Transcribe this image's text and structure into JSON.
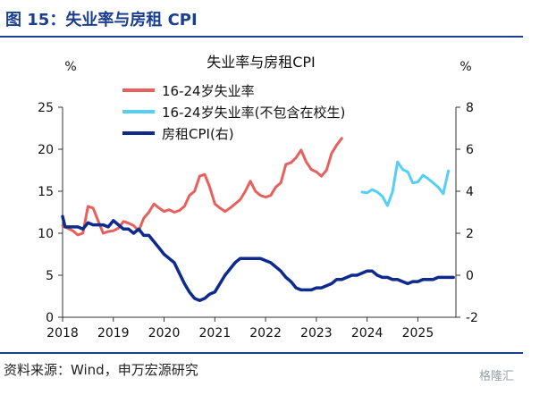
{
  "figure": {
    "title": "图 15：失业率与房租 CPI",
    "source": "资料来源：Wind，申万宏源研究",
    "watermark": "格隆汇"
  },
  "chart_data": {
    "type": "line",
    "title": "失业率与房租CPI",
    "y_unit_left": "%",
    "y_unit_right": "%",
    "xlim": [
      2018.0,
      2025.75
    ],
    "ylim_left": [
      0,
      25
    ],
    "ylim_right": [
      -2,
      8
    ],
    "x_ticks": [
      "2018",
      "2019",
      "2020",
      "2021",
      "2022",
      "2023",
      "2024",
      "2025"
    ],
    "y_ticks_left": [
      "0",
      "5",
      "10",
      "15",
      "20",
      "25"
    ],
    "y_ticks_right": [
      "-2",
      "0",
      "2",
      "4",
      "6",
      "8"
    ],
    "legend_position": "top-center",
    "series": [
      {
        "name": "16-24岁失业率",
        "axis": "left",
        "color": "#e8605d",
        "points": [
          [
            2018.0,
            10.9
          ],
          [
            2018.1,
            10.6
          ],
          [
            2018.2,
            10.3
          ],
          [
            2018.3,
            9.8
          ],
          [
            2018.4,
            10.0
          ],
          [
            2018.5,
            13.2
          ],
          [
            2018.6,
            13.0
          ],
          [
            2018.7,
            11.5
          ],
          [
            2018.8,
            10.0
          ],
          [
            2018.9,
            10.2
          ],
          [
            2019.0,
            10.3
          ],
          [
            2019.1,
            10.6
          ],
          [
            2019.2,
            11.4
          ],
          [
            2019.3,
            11.2
          ],
          [
            2019.4,
            10.9
          ],
          [
            2019.5,
            10.3
          ],
          [
            2019.6,
            11.8
          ],
          [
            2019.7,
            12.5
          ],
          [
            2019.8,
            13.5
          ],
          [
            2019.9,
            13.0
          ],
          [
            2020.0,
            12.6
          ],
          [
            2020.1,
            12.8
          ],
          [
            2020.2,
            12.5
          ],
          [
            2020.3,
            12.7
          ],
          [
            2020.4,
            13.2
          ],
          [
            2020.5,
            14.5
          ],
          [
            2020.6,
            15.0
          ],
          [
            2020.7,
            16.8
          ],
          [
            2020.8,
            17.0
          ],
          [
            2020.9,
            15.5
          ],
          [
            2021.0,
            13.5
          ],
          [
            2021.1,
            13.0
          ],
          [
            2021.2,
            12.6
          ],
          [
            2021.3,
            13.0
          ],
          [
            2021.4,
            13.5
          ],
          [
            2021.5,
            14.0
          ],
          [
            2021.6,
            15.0
          ],
          [
            2021.7,
            16.2
          ],
          [
            2021.8,
            15.0
          ],
          [
            2021.9,
            14.5
          ],
          [
            2022.0,
            14.3
          ],
          [
            2022.1,
            14.5
          ],
          [
            2022.2,
            15.5
          ],
          [
            2022.3,
            16.0
          ],
          [
            2022.4,
            18.2
          ],
          [
            2022.5,
            18.4
          ],
          [
            2022.6,
            19.0
          ],
          [
            2022.7,
            19.9
          ],
          [
            2022.8,
            18.5
          ],
          [
            2022.9,
            17.6
          ],
          [
            2023.0,
            17.3
          ],
          [
            2023.1,
            16.8
          ],
          [
            2023.2,
            17.5
          ],
          [
            2023.3,
            19.5
          ],
          [
            2023.4,
            20.5
          ],
          [
            2023.5,
            21.3
          ]
        ]
      },
      {
        "name": "16-24岁失业率(不包含在校生)",
        "axis": "left",
        "color": "#55cff5",
        "points": [
          [
            2023.9,
            14.9
          ],
          [
            2024.0,
            14.8
          ],
          [
            2024.1,
            15.2
          ],
          [
            2024.2,
            14.9
          ],
          [
            2024.3,
            14.4
          ],
          [
            2024.4,
            13.3
          ],
          [
            2024.5,
            14.9
          ],
          [
            2024.6,
            18.5
          ],
          [
            2024.7,
            17.6
          ],
          [
            2024.8,
            17.3
          ],
          [
            2024.9,
            16.0
          ],
          [
            2025.0,
            16.1
          ],
          [
            2025.1,
            16.9
          ],
          [
            2025.2,
            16.5
          ],
          [
            2025.3,
            16.0
          ],
          [
            2025.4,
            15.5
          ],
          [
            2025.5,
            14.7
          ],
          [
            2025.6,
            17.4
          ]
        ]
      },
      {
        "name": "房租CPI(右)",
        "axis": "right",
        "color": "#0d2a8c",
        "points": [
          [
            2018.0,
            2.8
          ],
          [
            2018.05,
            2.3
          ],
          [
            2018.1,
            2.3
          ],
          [
            2018.2,
            2.3
          ],
          [
            2018.3,
            2.3
          ],
          [
            2018.4,
            2.2
          ],
          [
            2018.5,
            2.5
          ],
          [
            2018.6,
            2.4
          ],
          [
            2018.7,
            2.4
          ],
          [
            2018.8,
            2.4
          ],
          [
            2018.9,
            2.3
          ],
          [
            2019.0,
            2.6
          ],
          [
            2019.1,
            2.4
          ],
          [
            2019.2,
            2.2
          ],
          [
            2019.3,
            2.2
          ],
          [
            2019.4,
            2.0
          ],
          [
            2019.5,
            2.2
          ],
          [
            2019.6,
            1.9
          ],
          [
            2019.7,
            1.9
          ],
          [
            2019.8,
            1.6
          ],
          [
            2019.9,
            1.3
          ],
          [
            2020.0,
            1.0
          ],
          [
            2020.1,
            0.8
          ],
          [
            2020.2,
            0.6
          ],
          [
            2020.3,
            0.1
          ],
          [
            2020.4,
            -0.4
          ],
          [
            2020.5,
            -0.8
          ],
          [
            2020.6,
            -1.1
          ],
          [
            2020.7,
            -1.2
          ],
          [
            2020.8,
            -1.1
          ],
          [
            2020.9,
            -0.9
          ],
          [
            2021.0,
            -0.8
          ],
          [
            2021.1,
            -0.4
          ],
          [
            2021.2,
            0.0
          ],
          [
            2021.3,
            0.3
          ],
          [
            2021.4,
            0.6
          ],
          [
            2021.5,
            0.8
          ],
          [
            2021.6,
            0.8
          ],
          [
            2021.7,
            0.8
          ],
          [
            2021.8,
            0.8
          ],
          [
            2021.9,
            0.8
          ],
          [
            2022.0,
            0.7
          ],
          [
            2022.1,
            0.6
          ],
          [
            2022.2,
            0.4
          ],
          [
            2022.3,
            0.2
          ],
          [
            2022.4,
            -0.1
          ],
          [
            2022.5,
            -0.3
          ],
          [
            2022.6,
            -0.6
          ],
          [
            2022.7,
            -0.7
          ],
          [
            2022.8,
            -0.7
          ],
          [
            2022.9,
            -0.7
          ],
          [
            2023.0,
            -0.6
          ],
          [
            2023.1,
            -0.6
          ],
          [
            2023.2,
            -0.5
          ],
          [
            2023.3,
            -0.4
          ],
          [
            2023.4,
            -0.2
          ],
          [
            2023.5,
            -0.2
          ],
          [
            2023.6,
            -0.1
          ],
          [
            2023.7,
            0.0
          ],
          [
            2023.8,
            0.0
          ],
          [
            2023.9,
            0.1
          ],
          [
            2024.0,
            0.2
          ],
          [
            2024.1,
            0.2
          ],
          [
            2024.2,
            0.0
          ],
          [
            2024.3,
            -0.1
          ],
          [
            2024.4,
            -0.1
          ],
          [
            2024.5,
            -0.2
          ],
          [
            2024.6,
            -0.2
          ],
          [
            2024.7,
            -0.3
          ],
          [
            2024.8,
            -0.4
          ],
          [
            2024.9,
            -0.3
          ],
          [
            2025.0,
            -0.3
          ],
          [
            2025.1,
            -0.2
          ],
          [
            2025.2,
            -0.2
          ],
          [
            2025.3,
            -0.2
          ],
          [
            2025.4,
            -0.1
          ],
          [
            2025.5,
            -0.1
          ],
          [
            2025.6,
            -0.1
          ],
          [
            2025.7,
            -0.1
          ]
        ]
      }
    ]
  }
}
